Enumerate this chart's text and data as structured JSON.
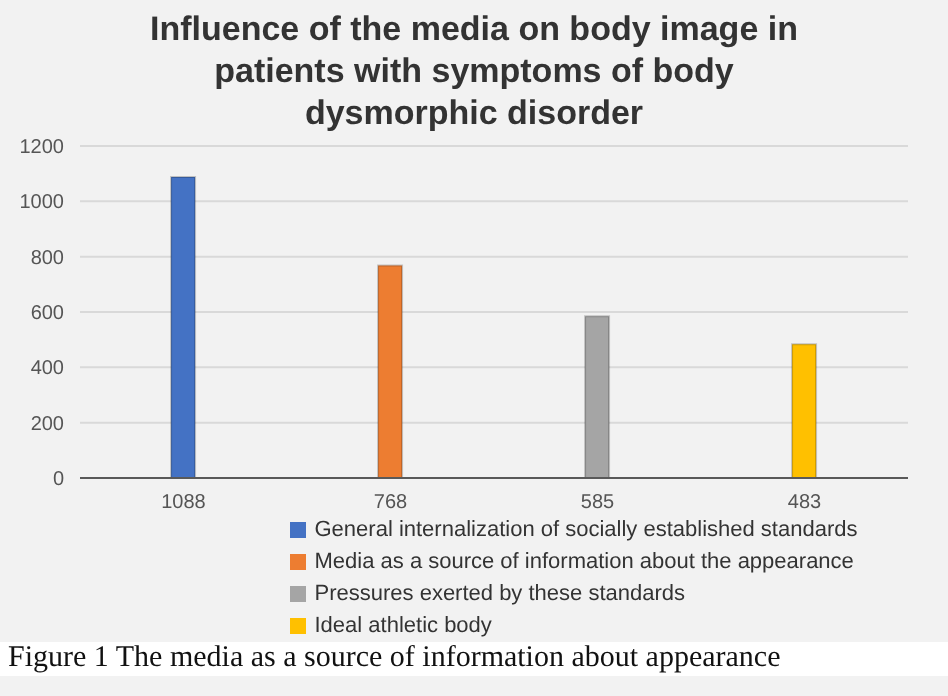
{
  "chart_data": {
    "type": "bar",
    "title": "Influence of the media on body image in patients with symptoms of body dysmorphic disorder",
    "categories": [
      "1088",
      "768",
      "585",
      "483"
    ],
    "series": [
      {
        "name": "General internalization of socially established standards",
        "color": "#4472c4",
        "values": [
          1088,
          null,
          null,
          null
        ]
      },
      {
        "name": "Media as a source of information about the appearance",
        "color": "#ed7d31",
        "values": [
          null,
          768,
          null,
          null
        ]
      },
      {
        "name": "Pressures exerted by these standards",
        "color": "#a5a5a5",
        "values": [
          null,
          null,
          585,
          null
        ]
      },
      {
        "name": "Ideal athletic body",
        "color": "#ffc000",
        "values": [
          null,
          null,
          null,
          483
        ]
      }
    ],
    "stacked": true,
    "ylim": [
      0,
      1200
    ],
    "yticks": [
      0,
      200,
      400,
      600,
      800,
      1000,
      1200
    ],
    "grid": "y",
    "legend": "bottom",
    "annotations": [
      "Figure 1 The media as a source of information about appearance"
    ]
  }
}
